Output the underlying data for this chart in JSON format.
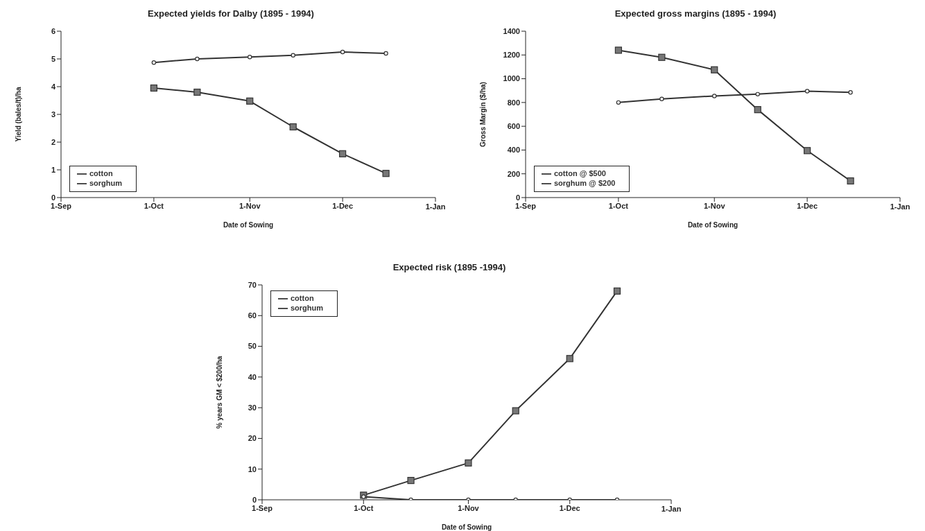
{
  "chart_data": [
    {
      "type": "line",
      "title": "Expected yields for Dalby (1895 - 1994)",
      "xlabel": "Date of Sowing",
      "ylabel": "Yield (bales/t)/ha",
      "x": [
        "--10-01",
        "--10-15",
        "--11-01",
        "--11-15",
        "--12-01",
        "--12-15"
      ],
      "series": [
        {
          "name": "cotton",
          "color": "#333333",
          "marker": "square",
          "values": [
            3.95,
            3.8,
            3.48,
            2.55,
            1.58,
            0.87
          ]
        },
        {
          "name": "sorghum",
          "color": "#333333",
          "marker": "circle",
          "values": [
            4.87,
            5.0,
            5.07,
            5.13,
            5.25,
            5.2
          ]
        }
      ],
      "xlim": [
        "--09-01",
        "--12-31"
      ],
      "xticks": [
        {
          "value": "--09-01",
          "label": "1-Sep"
        },
        {
          "value": "--10-01",
          "label": "1-Oct"
        },
        {
          "value": "--11-01",
          "label": "1-Nov"
        },
        {
          "value": "--12-01",
          "label": "1-Dec"
        },
        {
          "value": "--12-31",
          "label": null
        }
      ],
      "annotations": [
        "1-Jan"
      ],
      "ylim": [
        0,
        6
      ],
      "yticks": [
        0,
        1,
        2,
        3,
        4,
        5,
        6
      ],
      "grid": false,
      "legend": "bottom left"
    },
    {
      "type": "line",
      "title": "Expected gross margins (1895 - 1994)",
      "xlabel": "Date of Sowing",
      "ylabel": "Gross Margin ($/ha)",
      "x": [
        "--10-01",
        "--10-15",
        "--11-01",
        "--11-15",
        "--12-01",
        "--12-15"
      ],
      "series": [
        {
          "name": "cotton @ $500",
          "color": "#333333",
          "marker": "square",
          "values": [
            1240,
            1180,
            1075,
            740,
            395,
            140
          ]
        },
        {
          "name": "sorghum @ $200",
          "color": "#333333",
          "marker": "circle",
          "values": [
            800,
            830,
            855,
            870,
            895,
            885
          ]
        }
      ],
      "xlim": [
        "--09-01",
        "--12-31"
      ],
      "xticks": [
        {
          "value": "--09-01",
          "label": "1-Sep"
        },
        {
          "value": "--10-01",
          "label": "1-Oct"
        },
        {
          "value": "--11-01",
          "label": "1-Nov"
        },
        {
          "value": "--12-01",
          "label": "1-Dec"
        },
        {
          "value": "--12-31",
          "label": null
        }
      ],
      "annotations": [
        "1-Jan"
      ],
      "ylim": [
        0,
        1400
      ],
      "yticks": [
        0,
        200,
        400,
        600,
        800,
        1000,
        1200,
        1400
      ],
      "grid": false,
      "legend": "bottom left"
    },
    {
      "type": "line",
      "title": "Expected risk (1895 -1994)",
      "xlabel": "Date of Sowing",
      "ylabel": "% years GM < $200/ha",
      "x": [
        "--10-01",
        "--10-15",
        "--11-01",
        "--11-15",
        "--12-01",
        "--12-15"
      ],
      "series": [
        {
          "name": "cotton",
          "color": "#333333",
          "marker": "square",
          "values": [
            1.5,
            6.3,
            12,
            29,
            46,
            68
          ]
        },
        {
          "name": "sorghum",
          "color": "#333333",
          "marker": "circle",
          "values": [
            1,
            0,
            0,
            0,
            0,
            0
          ]
        }
      ],
      "xlim": [
        "--09-01",
        "--12-31"
      ],
      "xticks": [
        {
          "value": "--09-01",
          "label": "1-Sep"
        },
        {
          "value": "--10-01",
          "label": "1-Oct"
        },
        {
          "value": "--11-01",
          "label": "1-Nov"
        },
        {
          "value": "--12-01",
          "label": "1-Dec"
        },
        {
          "value": "--12-31",
          "label": null
        }
      ],
      "annotations": [
        "1-Jan"
      ],
      "ylim": [
        0,
        70
      ],
      "yticks": [
        0,
        10,
        20,
        30,
        40,
        50,
        60,
        70
      ],
      "grid": false,
      "legend": "top left"
    }
  ]
}
